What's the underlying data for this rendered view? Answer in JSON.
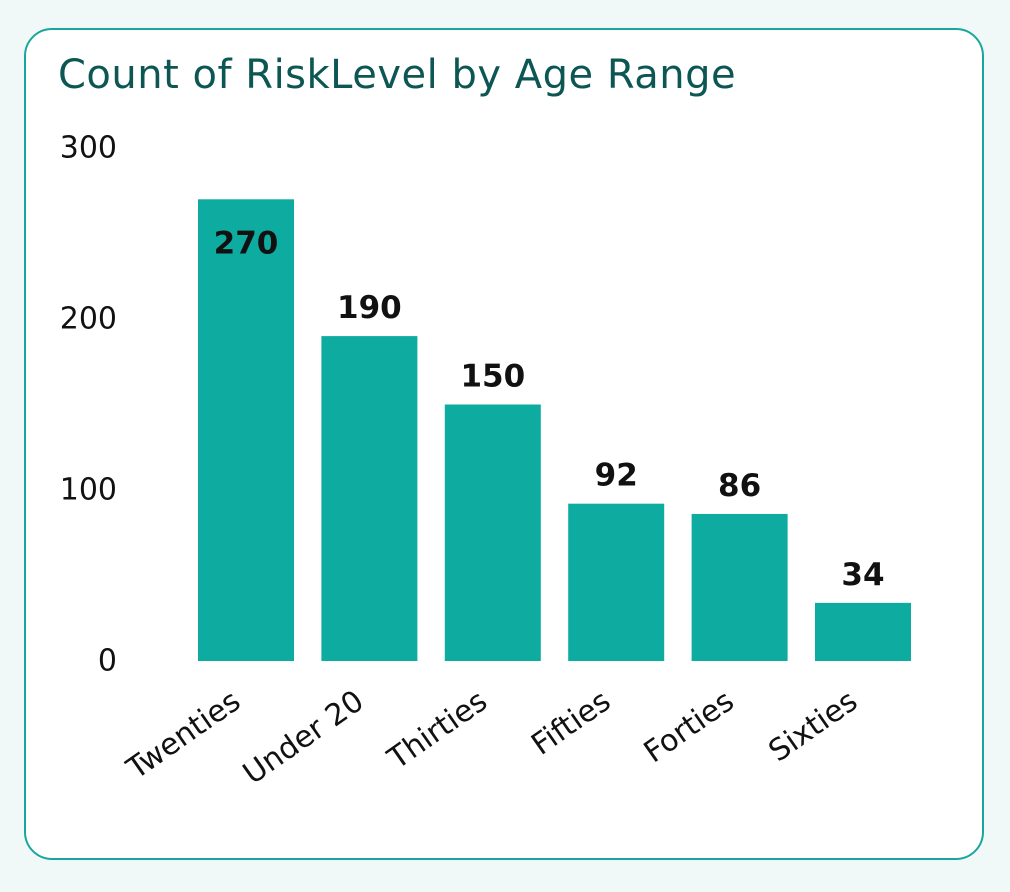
{
  "chart_data": {
    "type": "bar",
    "title": "Count of RiskLevel by Age Range",
    "xlabel": "",
    "ylabel": "",
    "categories": [
      "Twenties",
      "Under 20",
      "Thirties",
      "Fifties",
      "Forties",
      "Sixties"
    ],
    "values": [
      270,
      190,
      150,
      92,
      86,
      34
    ],
    "data_labels": [
      "270",
      "190",
      "150",
      "92",
      "86",
      "34"
    ],
    "ylim": [
      0,
      300
    ],
    "yticks": [
      0,
      100,
      200,
      300
    ],
    "ytick_labels": [
      "0",
      "100",
      "200",
      "300"
    ],
    "grid": false,
    "legend": "none",
    "bar_color": "#0eaba1",
    "title_color": "#0c5654",
    "border_color": "#1aa69c"
  }
}
